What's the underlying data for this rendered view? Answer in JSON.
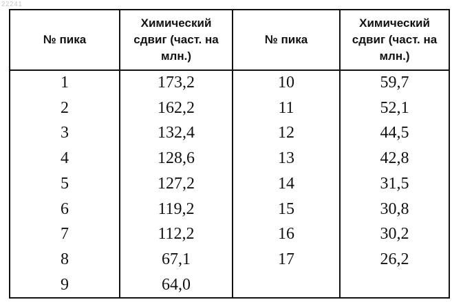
{
  "watermark": "22241",
  "table": {
    "headers": [
      "№ пика",
      "Химический сдвиг (част. на млн.)",
      "№ пика",
      "Химический сдвиг (част. на млн.)"
    ],
    "rows": [
      [
        "1",
        "173,2",
        "10",
        "59,7"
      ],
      [
        "2",
        "162,2",
        "11",
        "52,1"
      ],
      [
        "3",
        "132,4",
        "12",
        "44,5"
      ],
      [
        "4",
        "128,6",
        "13",
        "42,8"
      ],
      [
        "5",
        "127,2",
        "14",
        "31,5"
      ],
      [
        "6",
        "119,2",
        "15",
        "30,8"
      ],
      [
        "7",
        "112,2",
        "16",
        "30,2"
      ],
      [
        "8",
        "67,1",
        "17",
        "26,2"
      ],
      [
        "9",
        "64,0",
        "",
        ""
      ]
    ]
  }
}
